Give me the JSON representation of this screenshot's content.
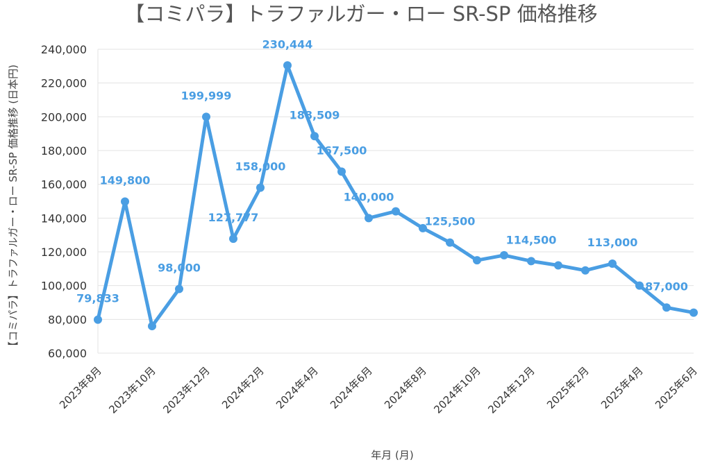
{
  "colors": {
    "series": "#4a9ee3",
    "grid": "#e3e3e3",
    "text": "#333333",
    "title": "#555555"
  },
  "chart_data": {
    "type": "line",
    "title": "【コミパラ】トラファルガー・ロー SR-SP 価格推移",
    "xlabel": "年月 (月)",
    "ylabel": "【コミパラ】トラファルガー・ロー SR-SP 価格推移 (日本円)",
    "ylim": [
      60000,
      240000
    ],
    "yticks": [
      60000,
      80000,
      100000,
      120000,
      140000,
      160000,
      180000,
      200000,
      220000,
      240000
    ],
    "ytick_labels": [
      "60,000",
      "80,000",
      "100,000",
      "120,000",
      "140,000",
      "160,000",
      "180,000",
      "200,000",
      "220,000",
      "240,000"
    ],
    "x": [
      "2023年8月",
      "2023年9月",
      "2023年10月",
      "2023年11月",
      "2023年12月",
      "2024年1月",
      "2024年2月",
      "2024年3月",
      "2024年4月",
      "2024年5月",
      "2024年6月",
      "2024年7月",
      "2024年8月",
      "2024年9月",
      "2024年10月",
      "2024年11月",
      "2024年12月",
      "2025年1月",
      "2025年2月",
      "2025年3月",
      "2025年4月",
      "2025年5月",
      "2025年6月"
    ],
    "xtick_labels": [
      "2023年8月",
      "2023年10月",
      "2023年12月",
      "2024年2月",
      "2024年4月",
      "2024年6月",
      "2024年8月",
      "2024年10月",
      "2024年12月",
      "2025年2月",
      "2025年4月",
      "2025年6月"
    ],
    "series": [
      {
        "values": [
          79833,
          149800,
          76000,
          98000,
          199999,
          127777,
          158000,
          230444,
          188509,
          167500,
          140000,
          144000,
          134000,
          125500,
          115000,
          118000,
          114500,
          112000,
          109000,
          113000,
          100000,
          87000,
          84000
        ]
      }
    ],
    "data_labels": [
      {
        "index": 0,
        "text": "79,833"
      },
      {
        "index": 1,
        "text": "149,800"
      },
      {
        "index": 3,
        "text": "98,000"
      },
      {
        "index": 4,
        "text": "199,999"
      },
      {
        "index": 5,
        "text": "127,777"
      },
      {
        "index": 6,
        "text": "158,000"
      },
      {
        "index": 7,
        "text": "230,444"
      },
      {
        "index": 8,
        "text": "188,509"
      },
      {
        "index": 9,
        "text": "167,500"
      },
      {
        "index": 10,
        "text": "140,000"
      },
      {
        "index": 13,
        "text": "125,500"
      },
      {
        "index": 16,
        "text": "114,500"
      },
      {
        "index": 19,
        "text": "113,000"
      },
      {
        "index": 21,
        "text": "87,000"
      }
    ],
    "grid": true,
    "legend": "none"
  }
}
